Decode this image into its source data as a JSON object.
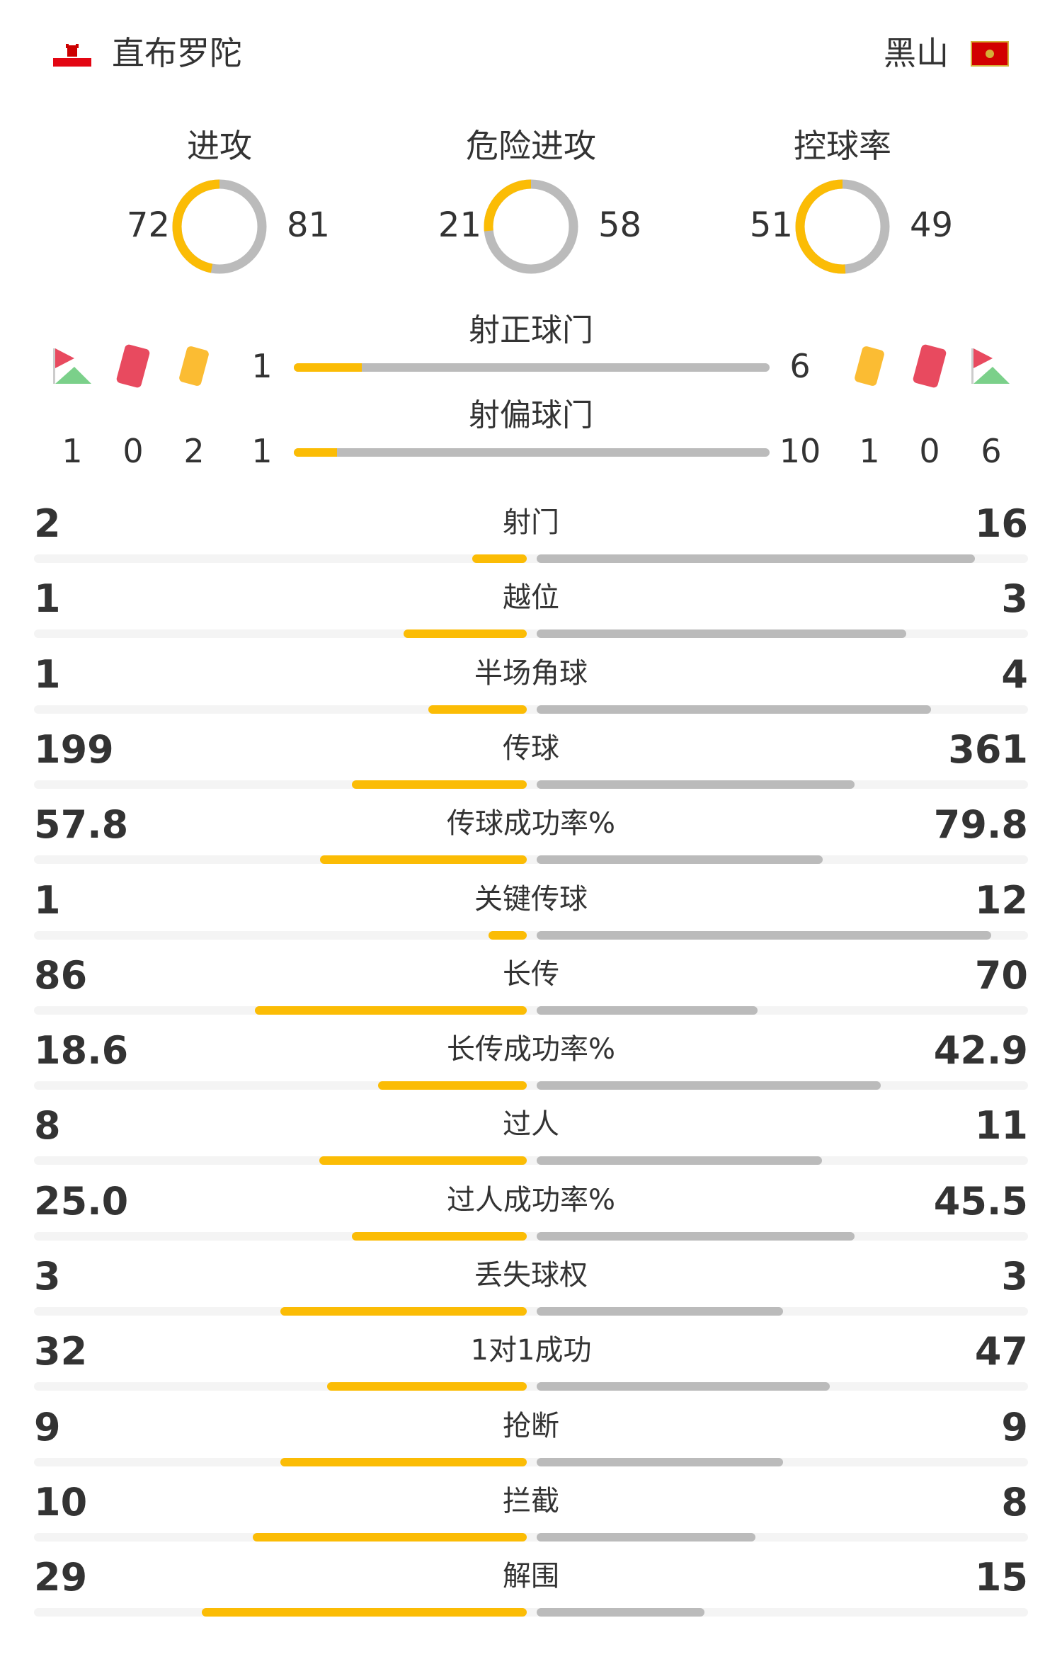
{
  "header": {
    "home_team": "直布罗陀",
    "away_team": "黑山",
    "home_flag": "gibraltar-flag",
    "away_flag": "montenegro-flag"
  },
  "colors": {
    "home": "#fbbc05",
    "away": "#bbbbbb",
    "track": "#f4f4f4",
    "red_card": "#e84a5f",
    "yellow_card": "#fbbc33",
    "corner_flag": "#e84a5f"
  },
  "donuts": [
    {
      "label": "进攻",
      "home": 72,
      "away": 81
    },
    {
      "label": "危险进攻",
      "home": 21,
      "away": 58
    },
    {
      "label": "控球率",
      "home": 51,
      "away": 49
    }
  ],
  "shots_on": {
    "label": "射正球门",
    "home": 1,
    "away": 6
  },
  "shots_off": {
    "label": "射偏球门",
    "home": 1,
    "away": 10
  },
  "home_events": {
    "corners": 1,
    "red_cards": 0,
    "yellow_cards": 2
  },
  "away_events": {
    "yellow_cards": 1,
    "red_cards": 0,
    "corners": 6
  },
  "stats": [
    {
      "label": "射门",
      "home": "2",
      "away": "16"
    },
    {
      "label": "越位",
      "home": "1",
      "away": "3"
    },
    {
      "label": "半场角球",
      "home": "1",
      "away": "4"
    },
    {
      "label": "传球",
      "home": "199",
      "away": "361"
    },
    {
      "label": "传球成功率%",
      "home": "57.8",
      "away": "79.8"
    },
    {
      "label": "关键传球",
      "home": "1",
      "away": "12"
    },
    {
      "label": "长传",
      "home": "86",
      "away": "70"
    },
    {
      "label": "长传成功率%",
      "home": "18.6",
      "away": "42.9"
    },
    {
      "label": "过人",
      "home": "8",
      "away": "11"
    },
    {
      "label": "过人成功率%",
      "home": "25.0",
      "away": "45.5"
    },
    {
      "label": "丢失球权",
      "home": "3",
      "away": "3"
    },
    {
      "label": "1对1成功",
      "home": "32",
      "away": "47"
    },
    {
      "label": "抢断",
      "home": "9",
      "away": "9"
    },
    {
      "label": "拦截",
      "home": "10",
      "away": "8"
    },
    {
      "label": "解围",
      "home": "29",
      "away": "15"
    }
  ]
}
